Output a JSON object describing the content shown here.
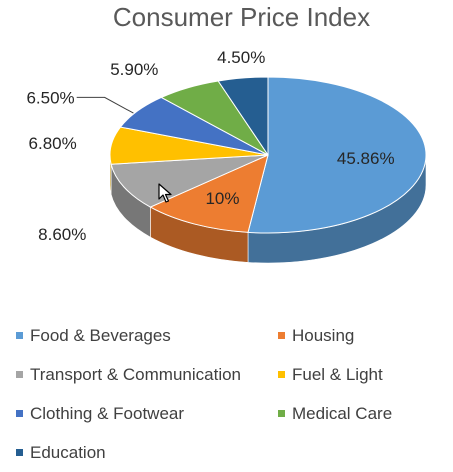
{
  "chart_data": {
    "type": "pie",
    "title": "Consumer Price Index",
    "categories": [
      "Food & Beverages",
      "Housing",
      "Transport & Communication",
      "Fuel & Light",
      "Clothing & Footwear",
      "Medical Care",
      "Education"
    ],
    "values": [
      45.86,
      10,
      8.6,
      6.8,
      6.5,
      5.9,
      4.5
    ],
    "data_labels": [
      "45.86%",
      "10%",
      "8.60%",
      "6.80%",
      "6.50%",
      "5.90%",
      "4.50%"
    ],
    "colors": [
      "#5B9BD5",
      "#ED7D31",
      "#A5A5A5",
      "#FFC000",
      "#4472C4",
      "#70AD47",
      "#255E91"
    ],
    "style": "3d-pie",
    "legend_position": "bottom"
  },
  "legend": {
    "items": [
      {
        "label": "Food & Beverages",
        "color": "#5B9BD5"
      },
      {
        "label": "Housing",
        "color": "#ED7D31"
      },
      {
        "label": "Transport & Communication",
        "color": "#A5A5A5"
      },
      {
        "label": "Fuel & Light",
        "color": "#FFC000"
      },
      {
        "label": "Clothing & Footwear",
        "color": "#4472C4"
      },
      {
        "label": "Medical Care",
        "color": "#70AD47"
      },
      {
        "label": "Education",
        "color": "#255E91"
      }
    ]
  },
  "cursor": {
    "icon": "mouse-pointer-icon"
  }
}
